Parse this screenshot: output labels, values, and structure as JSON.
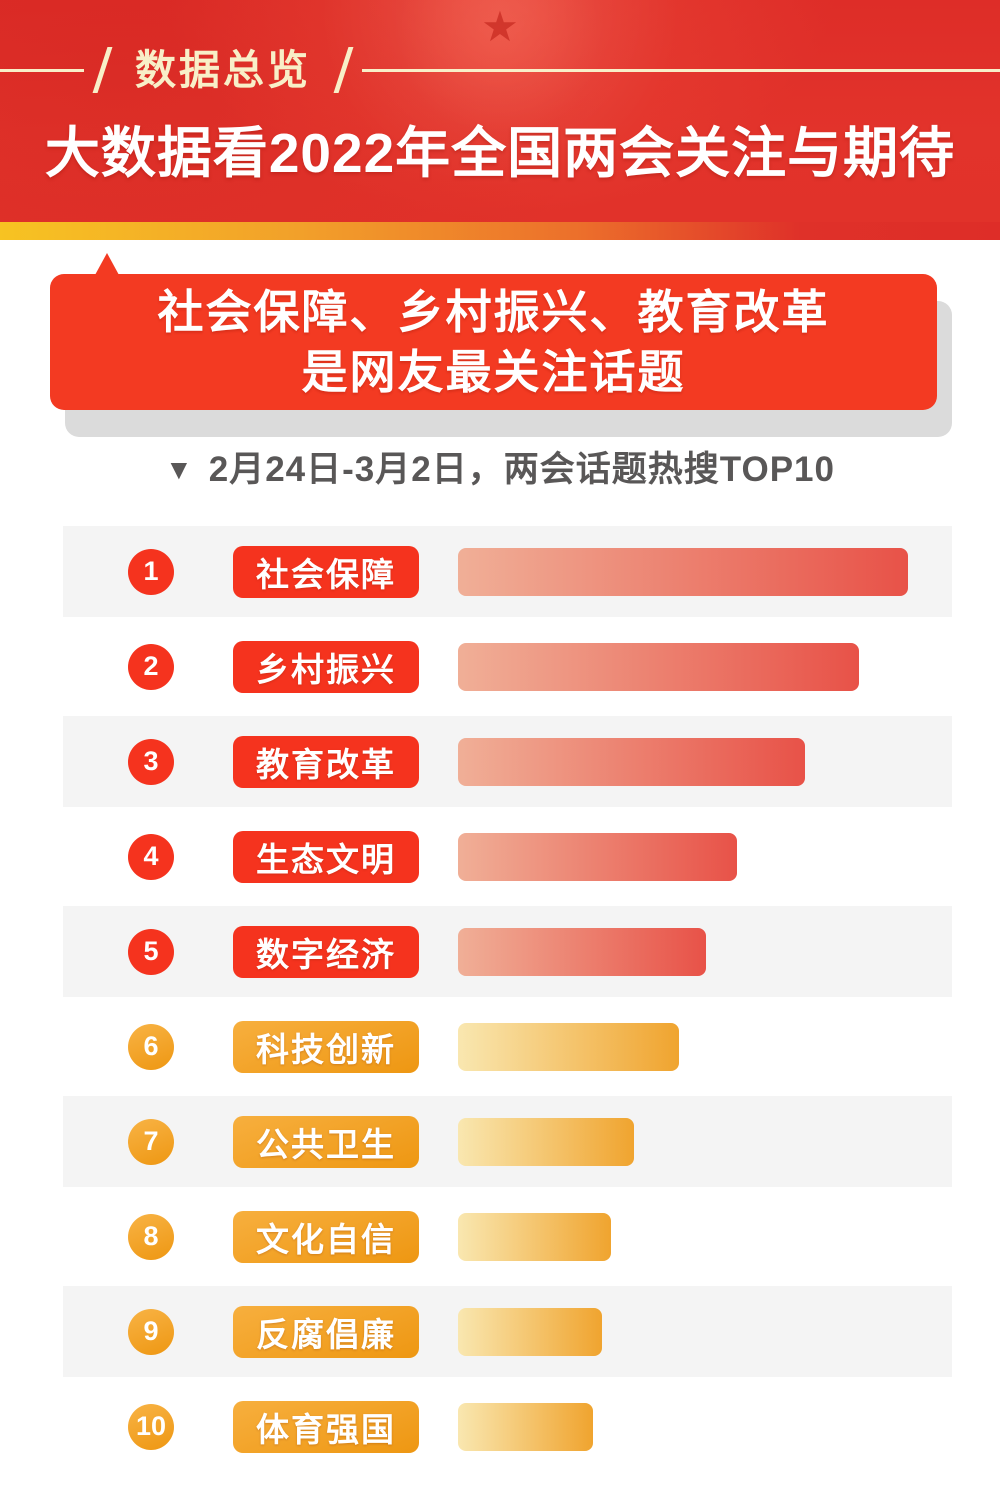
{
  "header": {
    "section_label": "数据总览",
    "title": "大数据看2022年全国两会关注与期待",
    "background_color": "#E1322A",
    "label_color": "#F8EFC8"
  },
  "accent_band_colors": [
    "#F7C322",
    "#F2A02A",
    "#EC6F2B",
    "#DE2D28"
  ],
  "highlight_card": {
    "line1": "社会保障、乡村振兴、教育改革",
    "line2": "是网友最关注话题",
    "background_color": "#F33A22",
    "shadow_color": "#DBDBDB"
  },
  "chart_header": {
    "marker": "▼",
    "text": "2月24日-3月2日，两会话题热搜TOP10",
    "color": "#595757"
  },
  "chart_data": {
    "type": "bar",
    "orientation": "horizontal",
    "title": "2月24日-3月2日，两会话题热搜TOP10",
    "categories": [
      "社会保障",
      "乡村振兴",
      "教育改革",
      "生态文明",
      "数字经济",
      "科技创新",
      "公共卫生",
      "文化自信",
      "反腐倡廉",
      "体育强国"
    ],
    "values": [
      100,
      89,
      77,
      62,
      55,
      49,
      39,
      34,
      32,
      30
    ],
    "value_note": "relative bar lengths as % of longest bar; no numeric data labels are shown in the image",
    "grid": false,
    "legend": null,
    "rows": [
      {
        "rank": "1",
        "label": "社会保障",
        "value_pct": 100,
        "theme": "red"
      },
      {
        "rank": "2",
        "label": "乡村振兴",
        "value_pct": 89,
        "theme": "red"
      },
      {
        "rank": "3",
        "label": "教育改革",
        "value_pct": 77,
        "theme": "red"
      },
      {
        "rank": "4",
        "label": "生态文明",
        "value_pct": 62,
        "theme": "red"
      },
      {
        "rank": "5",
        "label": "数字经济",
        "value_pct": 55,
        "theme": "red"
      },
      {
        "rank": "6",
        "label": "科技创新",
        "value_pct": 49,
        "theme": "amber"
      },
      {
        "rank": "7",
        "label": "公共卫生",
        "value_pct": 39,
        "theme": "amber"
      },
      {
        "rank": "8",
        "label": "文化自信",
        "value_pct": 34,
        "theme": "amber"
      },
      {
        "rank": "9",
        "label": "反腐倡廉",
        "value_pct": 32,
        "theme": "amber"
      },
      {
        "rank": "10",
        "label": "体育强国",
        "value_pct": 30,
        "theme": "amber"
      }
    ],
    "colors": {
      "red_badge": "#F5331E",
      "red_bar_gradient": [
        "#F0AF97",
        "#E85248"
      ],
      "amber_badge_gradient": [
        "#F7AF3E",
        "#EE9712"
      ],
      "amber_bar_gradient": [
        "#F9E7B0",
        "#F0A42F"
      ],
      "row_stripe": "#F4F4F4"
    }
  }
}
